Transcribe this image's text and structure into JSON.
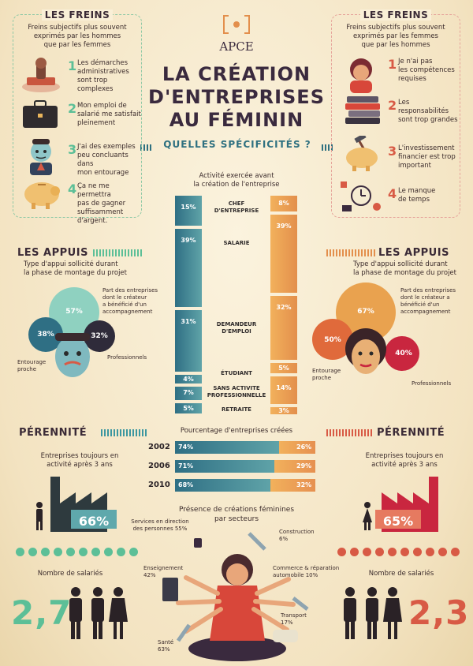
{
  "logo": {
    "name": "APCE"
  },
  "header": {
    "title_line1": "LA CRÉATION",
    "title_line2": "D'ENTREPRISES",
    "title_line3": "AU FÉMININ",
    "subtitle": "QUELLES SPÉCIFICITÉS ?"
  },
  "freins_men": {
    "title": "LES FREINS",
    "intro": [
      "Freins subjectifs plus souvent",
      "exprimés par les hommes",
      "que par les femmes"
    ],
    "items": [
      {
        "n": "1",
        "lines": [
          "Les démarches",
          "administratives",
          "sont trop complexes"
        ]
      },
      {
        "n": "2",
        "lines": [
          "Mon emploi de",
          "salarié me satisfait",
          "pleinement"
        ]
      },
      {
        "n": "3",
        "lines": [
          "J'ai des exemples",
          "peu concluants dans",
          "mon entourage"
        ]
      },
      {
        "n": "4",
        "lines": [
          "Ça ne me permettra",
          "pas de gagner",
          "suffisamment",
          "d'argent."
        ]
      }
    ]
  },
  "freins_women": {
    "title": "LES FREINS",
    "intro": [
      "Freins subjectifs plus souvent",
      "exprimés par les femmes",
      "que par les hommes"
    ],
    "items": [
      {
        "n": "1",
        "lines": [
          "Je n'ai pas",
          "les compétences",
          "requises"
        ]
      },
      {
        "n": "2",
        "lines": [
          "Les responsabilités",
          "sont trop grandes"
        ]
      },
      {
        "n": "3",
        "lines": [
          "L'investissement",
          "financier est trop",
          "important"
        ]
      },
      {
        "n": "4",
        "lines": [
          "Le manque",
          "de temps"
        ]
      }
    ]
  },
  "activity": {
    "title": [
      "Activité exercée avant",
      "la création de l'entreprise"
    ],
    "rows": [
      {
        "label": [
          "CHEF",
          "D'ENTREPRISE"
        ],
        "men": 15,
        "women": 8,
        "men_label": "15%",
        "women_label": "8%"
      },
      {
        "label": [
          "SALARIE"
        ],
        "men": 39,
        "women": 39,
        "men_label": "39%",
        "women_label": "39%"
      },
      {
        "label": [
          "DEMANDEUR",
          "D'EMPLOI"
        ],
        "men": 31,
        "women": 32,
        "men_label": "31%",
        "women_label": "32%"
      },
      {
        "label": [
          "ÉTUDIANT"
        ],
        "men": 4,
        "women": 5,
        "men_label": "4%",
        "women_label": "5%"
      },
      {
        "label": [
          "SANS ACTIVITE",
          "PROFESSIONNELLE"
        ],
        "men": 7,
        "women": 14,
        "men_label": "7%",
        "women_label": "14%"
      },
      {
        "label": [
          "RETRAITE"
        ],
        "men": 5,
        "women": 3,
        "men_label": "5%",
        "women_label": "3%"
      }
    ]
  },
  "appuis_men": {
    "title": "LES APPUIS",
    "intro": [
      "Type d'appui sollicité durant",
      "la phase de montage du projet"
    ],
    "big": "57%",
    "left": "38%",
    "right": "32%",
    "big_label": [
      "Part des entreprises",
      "dont le créateur",
      "a bénéficié d'un",
      "accompagnement"
    ],
    "left_label": [
      "Entourage",
      "proche"
    ],
    "right_label": "Professionnels"
  },
  "appuis_women": {
    "title": "LES APPUIS",
    "intro": [
      "Type d'appui sollicité durant",
      "la phase de montage du projet"
    ],
    "big": "67%",
    "left": "50%",
    "right": "40%",
    "big_label": [
      "Part des entreprises",
      "dont le créateur a",
      "bénéficié d'un",
      "accompagnement"
    ],
    "left_label": [
      "Entourage",
      "proche"
    ],
    "right_label": "Professionnels"
  },
  "perennite": {
    "title": "PÉRENNITÉ",
    "men_text": [
      "Entreprises toujours en",
      "activité après 3 ans"
    ],
    "women_text": [
      "Entreprises toujours en",
      "activité après 3 ans"
    ],
    "men_value": "66%",
    "women_value": "65%",
    "chart_title": "Pourcentage d'entreprises créées",
    "rows": [
      {
        "year": "2002",
        "men": 74,
        "women": 26,
        "men_label": "74%",
        "women_label": "26%"
      },
      {
        "year": "2006",
        "men": 71,
        "women": 29,
        "men_label": "71%",
        "women_label": "29%"
      },
      {
        "year": "2010",
        "men": 68,
        "women": 32,
        "men_label": "68%",
        "women_label": "32%"
      }
    ]
  },
  "sectors": {
    "title": [
      "Présence de créations féminines",
      "par secteurs"
    ],
    "items": [
      {
        "lines": [
          "Services en direction",
          "des personnes 55%"
        ]
      },
      {
        "lines": [
          "Construction",
          "6%"
        ]
      },
      {
        "lines": [
          "Enseignement",
          "42%"
        ]
      },
      {
        "lines": [
          "Commerce & réparation",
          "automobile 10%"
        ]
      },
      {
        "lines": [
          "Transport",
          "17%"
        ]
      },
      {
        "lines": [
          "Santé",
          "63%"
        ]
      }
    ]
  },
  "employees": {
    "label": "Nombre de salariés",
    "men_value": "2,7",
    "women_value": "2,3"
  },
  "colors": {
    "teal": "#3c97a0",
    "red": "#d85a45",
    "orange": "#e38f4c",
    "green": "#5cbf97",
    "navy": "#3a2a3e"
  }
}
